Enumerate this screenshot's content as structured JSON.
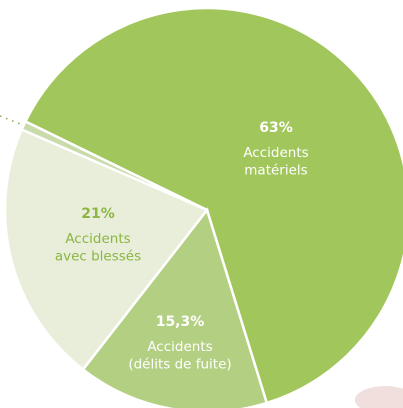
{
  "chart_data": {
    "type": "pie",
    "categories": [
      "Accidents\nmatériels",
      "Accidents\n(délits de fuite)",
      "Accidents\navec blessés",
      null
    ],
    "values": [
      63,
      15.3,
      21,
      0.7
    ],
    "value_labels": [
      "63%",
      "15,3%",
      "21%",
      null
    ],
    "colors": [
      "#a1c65b",
      "#b3cf82",
      "#e9eedb",
      "#c9dbab"
    ],
    "label_colors": [
      "#ffffff",
      "#ffffff",
      "#8ab641",
      null
    ],
    "start_angle": 296
  }
}
